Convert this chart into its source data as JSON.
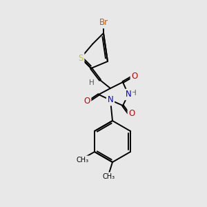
{
  "background_color": "#e8e8e8",
  "bond_color": "#000000",
  "atom_colors": {
    "Br": "#cc5500",
    "S": "#cccc00",
    "N": "#0000cc",
    "O": "#cc0000",
    "H": "#555555",
    "C": "#000000"
  },
  "figsize": [
    3.0,
    3.0
  ],
  "dpi": 100
}
